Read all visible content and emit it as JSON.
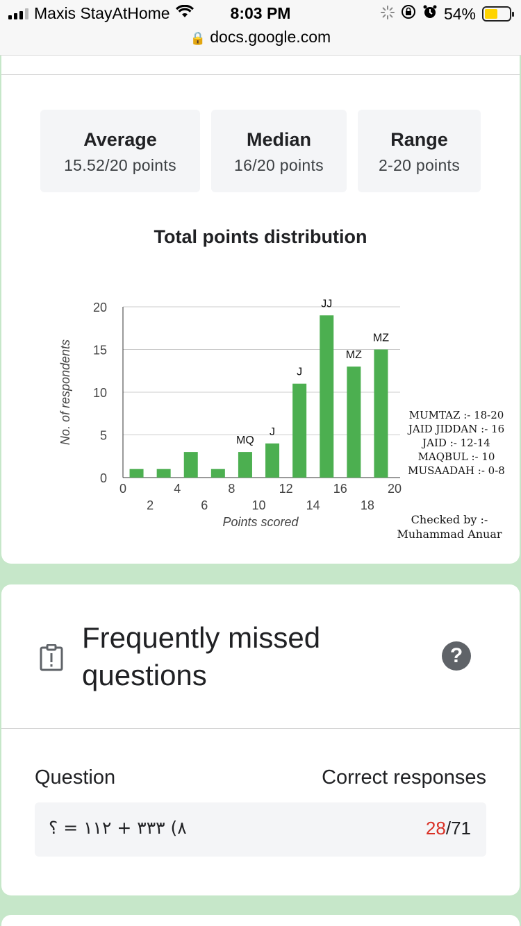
{
  "status_bar": {
    "carrier": "Maxis StayAtHome",
    "time": "8:03 PM",
    "battery": "54%",
    "battery_level": 0.54,
    "url": "docs.google.com"
  },
  "stats": {
    "average": {
      "label": "Average",
      "value": "15.52/20 points"
    },
    "median": {
      "label": "Median",
      "value": "16/20 points"
    },
    "range": {
      "label": "Range",
      "value": "2-20 points"
    }
  },
  "chart_data": {
    "type": "bar",
    "title": "Total points distribution",
    "xlabel": "Points scored",
    "ylabel": "No. of respondents",
    "x": [
      2,
      4,
      6,
      8,
      10,
      12,
      14,
      16,
      18,
      20
    ],
    "values": [
      1,
      1,
      3,
      1,
      3,
      4,
      11,
      19,
      13,
      15
    ],
    "bar_labels": [
      "",
      "",
      "",
      "",
      "MQ",
      "J",
      "J",
      "JJ",
      "MZ",
      "MZ"
    ],
    "xlim": [
      0,
      20
    ],
    "ylim": [
      0,
      20
    ],
    "x_ticks_upper": [
      "0",
      "4",
      "8",
      "12",
      "16",
      "20"
    ],
    "x_ticks_lower": [
      "2",
      "6",
      "10",
      "14",
      "18"
    ],
    "y_ticks": [
      "0",
      "5",
      "10",
      "15",
      "20"
    ],
    "bar_color": "#4caf50"
  },
  "legend_annotation": [
    "MUMTAZ :- 18-20",
    "JAID JIDDAN :- 16",
    "JAID :- 12-14",
    "MAQBUL :- 10",
    "MUSAADAH :- 0-8"
  ],
  "checked_by": {
    "line1": "Checked by :-",
    "line2": "Muhammad Anuar"
  },
  "frequently_missed": {
    "title": "Frequently missed questions",
    "help": "?",
    "col_question": "Question",
    "col_correct": "Correct responses",
    "rows": [
      {
        "question": "٨) ٣٣٣ + ١١٢ = ؟",
        "correct": "28",
        "total": "/71"
      }
    ]
  },
  "colors": {
    "accent_wrong": "#d93025",
    "background": "#c6e7c9"
  }
}
